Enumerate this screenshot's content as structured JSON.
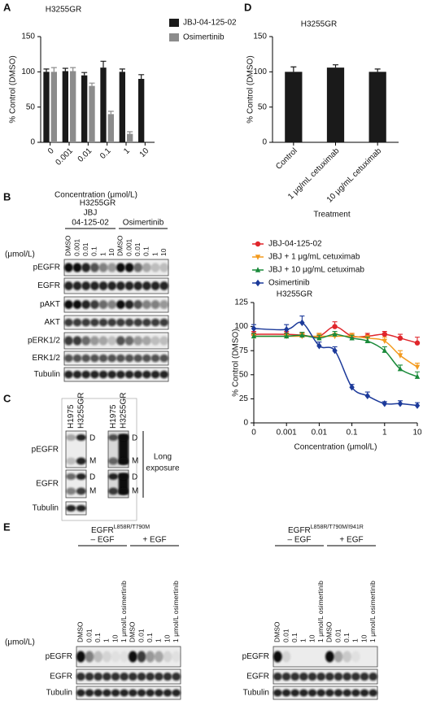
{
  "panel_labels": [
    "A",
    "B",
    "C",
    "D",
    "E"
  ],
  "chart_data": [
    {
      "type": "bar",
      "title": "H3255GR",
      "categories": [
        "0",
        "0.001",
        "0.01",
        "0.1",
        "1",
        "10"
      ],
      "series": [
        {
          "name": "JBJ-04-125-02",
          "color": "#1a1a1a",
          "values": [
            100,
            101,
            95,
            106,
            100,
            90
          ],
          "errors": [
            4,
            4,
            4,
            9,
            4,
            6
          ]
        },
        {
          "name": "Osimertinib",
          "color": "#8c8c8c",
          "values": [
            100,
            101,
            80,
            40,
            12,
            null
          ],
          "errors": [
            6,
            5,
            4,
            4,
            3,
            null
          ]
        }
      ],
      "ylim": [
        0,
        150
      ],
      "yticks": [
        0,
        50,
        100,
        150
      ],
      "y_label": "% Control (DMSO)",
      "x_label": "Concentration (μmol/L)"
    },
    {
      "type": "bar",
      "title": "H3255GR",
      "categories": [
        "Control",
        "1 μg/mL cetuximab",
        "10 μg/mL cetuximab"
      ],
      "series": [
        {
          "color": "#1a1a1a",
          "values": [
            100,
            106,
            100
          ],
          "errors": [
            7,
            4,
            4
          ]
        }
      ],
      "ylim": [
        0,
        150
      ],
      "yticks": [
        0,
        50,
        100,
        150
      ],
      "y_label": "% Control (DMSO)",
      "x_label": "Treatment"
    },
    {
      "type": "line",
      "title": "H3255GR",
      "x": [
        0,
        0.001,
        0.003,
        0.01,
        0.03,
        0.1,
        0.3,
        1,
        3,
        10
      ],
      "series": [
        {
          "name": "JBJ-04-125-02",
          "color": "#e0262b",
          "marker": "circle",
          "values": [
            92,
            92,
            91,
            90,
            100,
            90,
            90,
            92,
            88,
            83
          ],
          "errors": [
            3,
            3,
            3,
            3,
            5,
            3,
            3,
            3,
            4,
            6
          ]
        },
        {
          "name": "JBJ + 1 μg/mL cetuximab",
          "color": "#f39a1e",
          "marker": "triangle-down",
          "values": [
            90,
            90,
            90,
            90,
            90,
            90,
            88,
            85,
            70,
            58
          ],
          "errors": [
            3,
            3,
            3,
            3,
            3,
            3,
            3,
            4,
            5,
            4
          ]
        },
        {
          "name": "JBJ + 10 μg/mL cetuximab",
          "color": "#1a8a3a",
          "marker": "triangle-up",
          "values": [
            90,
            90,
            91,
            88,
            92,
            88,
            85,
            75,
            56,
            48
          ],
          "errors": [
            3,
            3,
            3,
            3,
            3,
            3,
            4,
            4,
            4,
            5
          ]
        },
        {
          "name": "Osimertinib",
          "color": "#1c3a9a",
          "marker": "diamond",
          "values": [
            98,
            97,
            104,
            80,
            75,
            37,
            28,
            20,
            20,
            18
          ],
          "errors": [
            4,
            5,
            7,
            4,
            4,
            3,
            4,
            2,
            3,
            3
          ]
        }
      ],
      "xscale": "log",
      "xlim": [
        0,
        10
      ],
      "xticks": [
        0,
        0.001,
        0.01,
        0.1,
        1,
        10
      ],
      "ylim": [
        0,
        125
      ],
      "yticks": [
        0,
        25,
        50,
        75,
        100,
        125
      ],
      "y_label": "% Control (DMSO)",
      "x_label": "Concentration (μmol/L)"
    }
  ],
  "blot_b": {
    "title": "H3255GR",
    "groups": [
      {
        "lines": [
          "JBJ",
          "04-125-02"
        ]
      },
      {
        "lines": [
          "Osimertinib"
        ]
      }
    ],
    "unit": "(μmol/L)",
    "lanes": [
      "DMSO",
      "0.001",
      "0.01",
      "0.1",
      "1",
      "10",
      "DMSO",
      "0.001",
      "0.01",
      "0.1",
      "1",
      "10"
    ],
    "rows": [
      "pEGFR",
      "EGFR",
      "pAKT",
      "AKT",
      "pERK1/2",
      "ERK1/2",
      "Tubulin"
    ]
  },
  "blot_c": {
    "lanes": [
      "H1975",
      "H3255GR"
    ],
    "rows": [
      "pEGFR",
      "EGFR",
      "Tubulin"
    ],
    "band_labels": [
      "D",
      "M"
    ],
    "note": [
      "Long",
      "exposure"
    ]
  },
  "blot_e": [
    {
      "title": "EGFR",
      "title_sup": "L858R/T790M",
      "groups": [
        "– EGF",
        "+ EGF"
      ],
      "unit": "(μmol/L)",
      "lanes": [
        "DMSO",
        "0.01",
        "0.1",
        "1",
        "10",
        "1 μmol/L osimertinib",
        "DMSO",
        "0.01",
        "0.1",
        "1",
        "10",
        "1 μmol/L osimertinib"
      ],
      "rows": [
        "pEGFR",
        "EGFR",
        "Tubulin"
      ]
    },
    {
      "title": "EGFR",
      "title_sup": "L858R/T790M/I941R",
      "groups": [
        "– EGF",
        "+ EGF"
      ],
      "unit": "(μmol/L)",
      "lanes": [
        "DMSO",
        "0.01",
        "0.1",
        "1",
        "10",
        "1 μmol/L osimertinib",
        "DMSO",
        "0.01",
        "0.1",
        "1",
        "10",
        "1 μmol/L osimertinib"
      ],
      "rows": [
        "pEGFR",
        "EGFR",
        "Tubulin"
      ]
    }
  ]
}
